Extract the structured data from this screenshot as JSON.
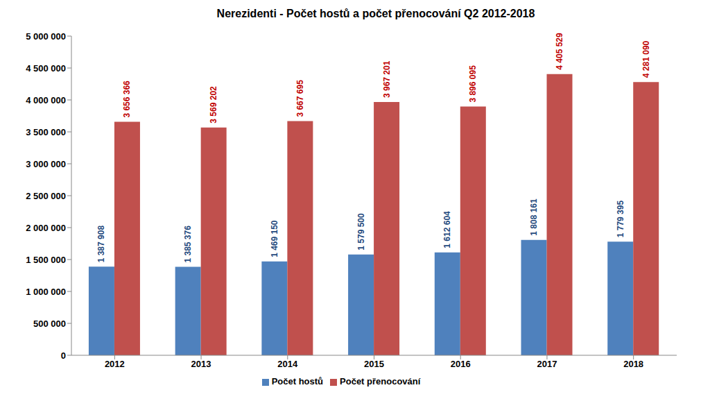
{
  "chart_data": {
    "type": "bar",
    "title": "Nerezidenti - Počet hostů a počet přenocování Q2 2012-2018",
    "categories": [
      "2012",
      "2013",
      "2014",
      "2015",
      "2016",
      "2017",
      "2018"
    ],
    "series": [
      {
        "name": "Počet hostů",
        "color": "#4f81bd",
        "values": [
          1387908,
          1385376,
          1469150,
          1579500,
          1612604,
          1808161,
          1779395
        ],
        "value_labels": [
          "1 387 908",
          "1 385 376",
          "1 469 150",
          "1 579 500",
          "1 612 604",
          "1 808 161",
          "1 779 395"
        ]
      },
      {
        "name": "Počet přenocování",
        "color": "#c0504d",
        "values": [
          3656366,
          3569202,
          3667695,
          3967201,
          3896095,
          4405529,
          4281090
        ],
        "value_labels": [
          "3 656 366",
          "3 569 202",
          "3 667 695",
          "3 967 201",
          "3 896 095",
          "4 405 529",
          "4 281 090"
        ]
      }
    ],
    "ylim": [
      0,
      5000000
    ],
    "yticks": [
      {
        "value": 0,
        "label": "0"
      },
      {
        "value": 500000,
        "label": "500 000"
      },
      {
        "value": 1000000,
        "label": "1 000 000"
      },
      {
        "value": 1500000,
        "label": "1 500 000"
      },
      {
        "value": 2000000,
        "label": "2 000 000"
      },
      {
        "value": 2500000,
        "label": "2 500 000"
      },
      {
        "value": 3000000,
        "label": "3 000 000"
      },
      {
        "value": 3500000,
        "label": "3 500 000"
      },
      {
        "value": 4000000,
        "label": "4 000 000"
      },
      {
        "value": 4500000,
        "label": "4 500 000"
      },
      {
        "value": 5000000,
        "label": "5 000 000"
      }
    ],
    "grid": false,
    "legend": "bottom",
    "data_labels": true
  }
}
